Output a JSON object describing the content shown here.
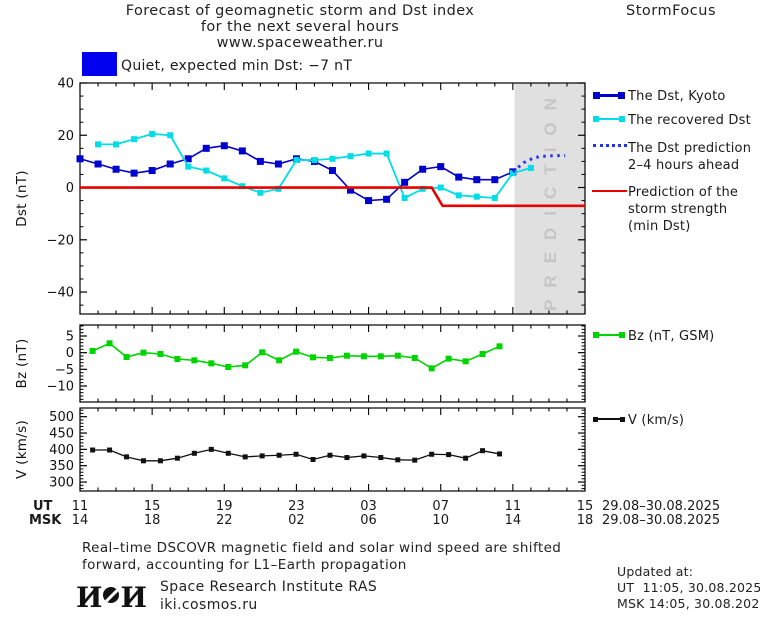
{
  "header": {
    "title_line1": "Forecast of geomagnetic storm and Dst index",
    "title_line2": "for the next several hours",
    "title_line3": "www.spaceweather.ru",
    "brand": "StormFocus"
  },
  "status": {
    "label": "Quiet, expected min Dst: −7 nT",
    "box_color": "#0000ee"
  },
  "legend_main": {
    "items": [
      {
        "line1": "The Dst, Kyoto"
      },
      {
        "line1": "The recovered Dst"
      },
      {
        "line1": "The Dst prediction",
        "line2": "2–4 hours ahead"
      },
      {
        "line1": "Prediction of the",
        "line2": "storm strength",
        "line3": "(min Dst)"
      }
    ]
  },
  "legend_bz": {
    "label": "Bz (nT, GSM)"
  },
  "legend_v": {
    "label": "V (km/s)"
  },
  "prediction_band": {
    "label": "PREDICTION",
    "band_color": "#e0e0e0",
    "text_color": "#c5c5c5"
  },
  "axis": {
    "ut_label": "UT",
    "msk_label": "MSK",
    "tick_hours": [
      0,
      4,
      8,
      12,
      16,
      20,
      24,
      28
    ],
    "ut_ticks": [
      "11",
      "15",
      "19",
      "23",
      "03",
      "07",
      "11",
      "15"
    ],
    "msk_ticks": [
      "14",
      "18",
      "22",
      "02",
      "06",
      "10",
      "14",
      "18"
    ],
    "ut_date": "29.08–30.08.2025",
    "msk_date": "29.08–30.08.2025"
  },
  "footer": {
    "note_line1": "Real–time DSCOVR magnetic field and solar wind speed are shifted",
    "note_line2": "forward, accounting for L1–Earth propagation",
    "logo_left": "И",
    "logo_right": "И",
    "institute": "Space Research Institute RAS",
    "site": "iki.cosmos.ru",
    "updated_label": "Updated at:",
    "updated_ut": "UT  11:05, 30.08.2025",
    "updated_msk": "MSK 14:05, 30.08.2025"
  },
  "chart_data": [
    {
      "type": "line",
      "ylabel": "Dst (nT)",
      "ylim": [
        -48.4,
        40
      ],
      "yticks": [
        40,
        20,
        0,
        -20,
        -40
      ],
      "yminor": 5,
      "xlim_hours": [
        0,
        28
      ],
      "prediction_band_start_hour": 24.1,
      "series": [
        {
          "name": "The Dst, Kyoto",
          "slug": "dst-kyoto-series",
          "color": "#0000cc",
          "lw": 1.6,
          "marker": "square",
          "msize": 7,
          "hours": [
            0,
            1,
            2,
            3,
            4,
            5,
            6,
            7,
            8,
            9,
            10,
            11,
            12,
            13,
            14,
            15,
            16,
            17,
            18,
            19,
            20,
            21,
            22,
            23,
            24
          ],
          "values": [
            11,
            9,
            7,
            5.5,
            6.5,
            9,
            11,
            15,
            16,
            14,
            10,
            9,
            11,
            10,
            6.5,
            -1,
            -5,
            -4.5,
            2,
            7,
            8,
            4,
            3,
            3,
            6
          ]
        },
        {
          "name": "The recovered Dst",
          "slug": "recovered-dst-series",
          "color": "#00dde6",
          "lw": 1.8,
          "marker": "square",
          "msize": 6,
          "hours": [
            1,
            2,
            3,
            4,
            5,
            6,
            7,
            8,
            9,
            10,
            11,
            12,
            13,
            14,
            15,
            16,
            17,
            18,
            19,
            20,
            21,
            22,
            23,
            24,
            25
          ],
          "values": [
            16.5,
            16.5,
            18.5,
            20.5,
            20,
            8,
            6.5,
            3.5,
            0.5,
            -2,
            -0.5,
            10.5,
            10.5,
            11,
            12,
            13,
            13,
            -4,
            -0.5,
            0,
            -3,
            -3.5,
            -4,
            5.5,
            7.5
          ]
        },
        {
          "name": "The Dst prediction 2–4 hours ahead",
          "slug": "dst-prediction-series",
          "color": "#2233ee",
          "lw": 3,
          "style": "dotted",
          "hours": [
            24,
            24.6,
            25.2,
            25.8,
            26.4,
            26.9
          ],
          "values": [
            6,
            9.5,
            11.5,
            12,
            12.2,
            12.2
          ]
        },
        {
          "name": "Prediction of the storm strength (min Dst)",
          "slug": "storm-strength-line",
          "color": "#e80000",
          "lw": 2.6,
          "hours": [
            0,
            19.5,
            20.1,
            28
          ],
          "values": [
            0,
            0,
            -7,
            -7
          ]
        }
      ]
    },
    {
      "type": "line",
      "ylabel": "Bz (nT)",
      "ylim": [
        -14.8,
        8.3
      ],
      "yticks": [
        5,
        0,
        -5,
        -10
      ],
      "yminor": 1,
      "xlim_hours": [
        0,
        28
      ],
      "series": [
        {
          "name": "Bz (nT, GSM)",
          "slug": "bz-series",
          "color": "#00d400",
          "lw": 1.6,
          "marker": "square",
          "msize": 6,
          "x_start": 0.7,
          "x_step": 0.94,
          "values": [
            0.5,
            2.8,
            -1.3,
            0,
            -0.4,
            -1.9,
            -2.3,
            -3.2,
            -4.3,
            -3.8,
            0.1,
            -2.3,
            0.3,
            -1.4,
            -1.6,
            -0.9,
            -1.1,
            -1.1,
            -0.9,
            -1.6,
            -4.7,
            -1.8,
            -2.6,
            -0.4,
            1.9
          ]
        }
      ]
    },
    {
      "type": "line",
      "ylabel": "V (km/s)",
      "ylim": [
        272.6,
        526.6
      ],
      "yticks": [
        500,
        450,
        400,
        350,
        300
      ],
      "yminor": 10,
      "xlim_hours": [
        0,
        28
      ],
      "series": [
        {
          "name": "V (km/s)",
          "slug": "v-series",
          "color": "#111111",
          "lw": 1.3,
          "marker": "square",
          "msize": 5,
          "x_start": 0.7,
          "x_step": 0.94,
          "values": [
            398,
            398,
            377,
            365,
            365,
            373,
            388,
            400,
            388,
            377,
            380,
            382,
            385,
            369,
            382,
            375,
            380,
            375,
            368,
            367,
            385,
            384,
            373,
            396,
            386
          ]
        }
      ]
    }
  ]
}
